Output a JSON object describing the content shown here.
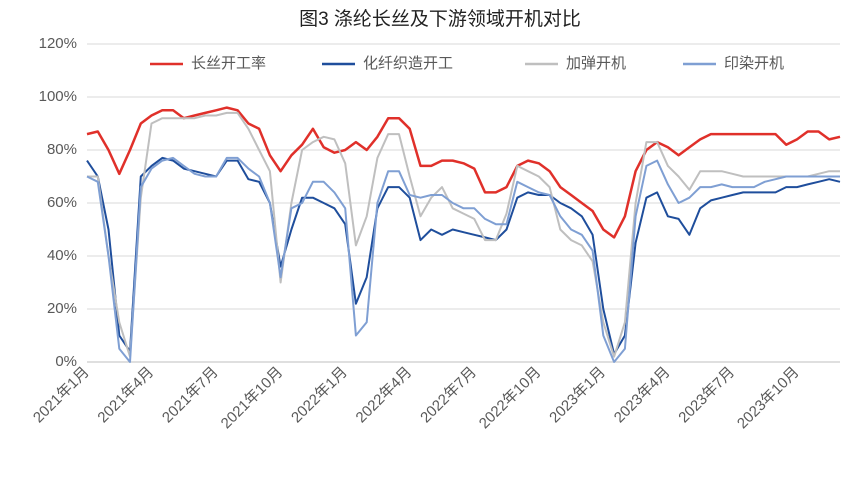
{
  "chart_data": {
    "type": "line",
    "title": "图3 涤纶长丝及下游领域开机对比",
    "categories": [
      "2021年1月",
      null,
      null,
      null,
      null,
      null,
      "2021年4月",
      null,
      null,
      null,
      null,
      null,
      "2021年7月",
      null,
      null,
      null,
      null,
      null,
      "2021年10月",
      null,
      null,
      null,
      null,
      null,
      "2022年1月",
      null,
      null,
      null,
      null,
      null,
      "2022年4月",
      null,
      null,
      null,
      null,
      null,
      "2022年7月",
      null,
      null,
      null,
      null,
      null,
      "2022年10月",
      null,
      null,
      null,
      null,
      null,
      "2023年1月",
      null,
      null,
      null,
      null,
      null,
      "2023年4月",
      null,
      null,
      null,
      null,
      null,
      "2023年7月",
      null,
      null,
      null,
      null,
      null,
      "2023年10月",
      null,
      null,
      null,
      null
    ],
    "series": [
      {
        "name": "长丝开工率",
        "color": "#e0302a",
        "values": [
          86,
          87,
          80,
          71,
          80,
          90,
          93,
          95,
          95,
          92,
          93,
          94,
          95,
          96,
          95,
          90,
          88,
          78,
          72,
          78,
          82,
          88,
          81,
          79,
          80,
          83,
          80,
          85,
          92,
          92,
          88,
          74,
          74,
          76,
          76,
          75,
          73,
          64,
          64,
          66,
          74,
          76,
          75,
          72,
          66,
          63,
          60,
          57,
          50,
          47,
          55,
          72,
          80,
          83,
          81,
          78,
          81,
          84,
          86,
          86,
          86,
          86,
          86,
          86,
          86,
          82,
          84,
          87,
          87,
          84,
          85
        ]
      },
      {
        "name": "化纤织造开工",
        "color": "#1f4e9c",
        "values": [
          76,
          70,
          50,
          10,
          4,
          70,
          74,
          77,
          76,
          73,
          72,
          71,
          70,
          76,
          76,
          69,
          68,
          60,
          36,
          50,
          62,
          62,
          60,
          58,
          52,
          22,
          32,
          58,
          66,
          66,
          62,
          46,
          50,
          48,
          50,
          49,
          48,
          47,
          46,
          50,
          62,
          64,
          63,
          63,
          60,
          58,
          55,
          48,
          20,
          3,
          10,
          45,
          62,
          64,
          55,
          54,
          48,
          58,
          61,
          62,
          63,
          64,
          64,
          64,
          64,
          66,
          66,
          67,
          68,
          69,
          68
        ]
      },
      {
        "name": "加弹开机",
        "color": "#bfbfbf",
        "values": [
          70,
          70,
          40,
          15,
          2,
          62,
          90,
          92,
          92,
          92,
          92,
          93,
          93,
          94,
          94,
          88,
          80,
          72,
          30,
          60,
          80,
          83,
          85,
          84,
          75,
          44,
          55,
          77,
          86,
          86,
          70,
          55,
          62,
          66,
          58,
          56,
          54,
          46,
          46,
          56,
          74,
          72,
          70,
          66,
          50,
          46,
          44,
          38,
          15,
          2,
          15,
          60,
          83,
          83,
          74,
          70,
          65,
          72,
          72,
          72,
          71,
          70,
          70,
          70,
          70,
          70,
          70,
          70,
          71,
          72,
          72
        ]
      },
      {
        "name": "印染开机",
        "color": "#7f9fd3",
        "values": [
          70,
          68,
          40,
          5,
          0,
          66,
          73,
          76,
          77,
          74,
          71,
          70,
          70,
          77,
          77,
          73,
          70,
          60,
          32,
          58,
          60,
          68,
          68,
          64,
          58,
          10,
          15,
          60,
          72,
          72,
          63,
          62,
          63,
          63,
          60,
          58,
          58,
          54,
          52,
          52,
          68,
          66,
          64,
          63,
          55,
          50,
          48,
          42,
          10,
          0,
          5,
          55,
          74,
          76,
          67,
          60,
          62,
          66,
          66,
          67,
          66,
          66,
          66,
          68,
          69,
          70,
          70,
          70,
          70,
          70,
          70
        ]
      }
    ],
    "ylim": [
      0,
      120
    ],
    "yticks": [
      {
        "value": 0,
        "label": "0%"
      },
      {
        "value": 20,
        "label": "20%"
      },
      {
        "value": 40,
        "label": "40%"
      },
      {
        "value": 60,
        "label": "60%"
      },
      {
        "value": 80,
        "label": "80%"
      },
      {
        "value": 100,
        "label": "100%"
      },
      {
        "value": 120,
        "label": "120%"
      }
    ],
    "grid": true,
    "legend": "top"
  }
}
